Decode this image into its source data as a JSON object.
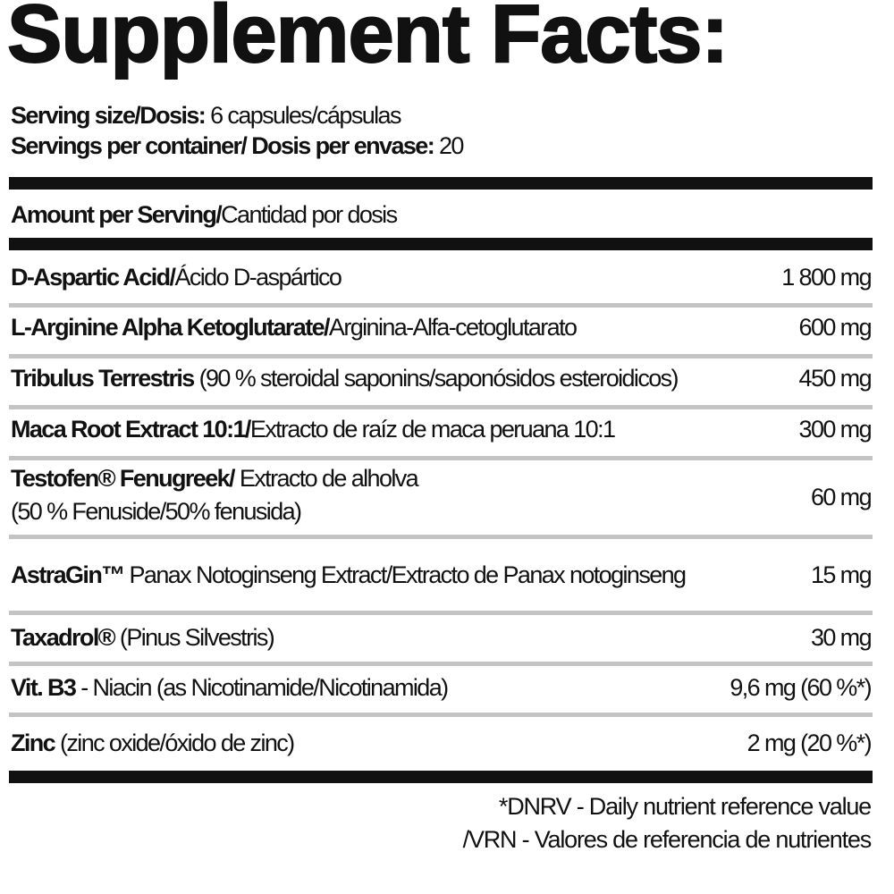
{
  "title": "Supplement Facts:",
  "serving_size": {
    "label": "Serving size/Dosis:",
    "value": "6 capsules/cápsulas"
  },
  "servings_per_container": {
    "label": "Servings per container/ Dosis per envase:",
    "value": "20"
  },
  "amount_header": {
    "bold": "Amount per Serving/",
    "regular": "Cantidad por dosis"
  },
  "rows": [
    {
      "bold": "D-Aspartic Acid/",
      "regular": "Ácido D-aspártico",
      "amount": "1 800 mg"
    },
    {
      "bold": "L-Arginine Alpha Ketoglutarate/",
      "regular": "Arginina-Alfa-cetoglutarato",
      "amount": "600 mg"
    },
    {
      "bold": "Tribulus Terrestris",
      "regular": " (90 % steroidal saponins/saponósidos esteroidicos)",
      "amount": "450 mg"
    },
    {
      "bold": "Maca Root Extract 10:1/",
      "regular": "Extracto de raíz de maca peruana 10:1",
      "amount": "300 mg"
    },
    {
      "bold": "Testofen® Fenugreek/",
      "regular": " Extracto de alholva",
      "line2": "(50 % Fenuside/50% fenusida)",
      "amount": "60 mg"
    },
    {
      "bold": "AstraGin™",
      "regular": " Panax Notoginseng Extract/Extracto de Panax notoginseng",
      "amount": "15 mg"
    },
    {
      "bold": "Taxadrol®",
      "regular": " (Pinus Silvestris)",
      "amount": "30 mg"
    },
    {
      "bold": "Vit. B3",
      "regular": " - Niacin (as Nicotinamide/Nicotinamida)",
      "amount": "9,6 mg (60 %*)"
    },
    {
      "bold": "Zinc",
      "regular": " (zinc oxide/óxido de zinc)",
      "amount": "2 mg (20 %*)"
    }
  ],
  "footnote": {
    "line1": "*DNRV - Daily nutrient reference value",
    "line2": "/VRN - Valores de referencia de nutrientes"
  }
}
